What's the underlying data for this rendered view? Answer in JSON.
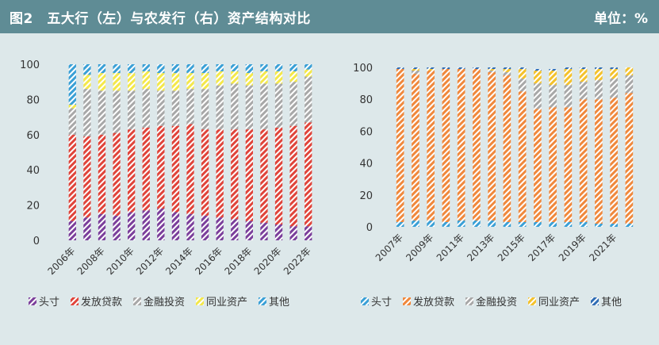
{
  "header": {
    "title": "图2　五大行（左）与农发行（右）资产结构对比",
    "unit": "单位：%"
  },
  "colors": {
    "头寸": "#7b3f9b",
    "发放贷款": "#e0443a",
    "金融投资": "#a8a8a8",
    "同业资产": "#f4e84a",
    "其他": "#3aa0d6",
    "right_头寸": "#3aa0d6",
    "right_发放贷款": "#f0883c",
    "right_金融投资": "#a8a8a8",
    "right_同业资产": "#f4c22c",
    "right_其他": "#2f6db5"
  },
  "chart_data": [
    {
      "type": "bar",
      "stacked": true,
      "title": "五大行",
      "categories": [
        "2006年",
        "2007年",
        "2008年",
        "2009年",
        "2010年",
        "2011年",
        "2012年",
        "2013年",
        "2014年",
        "2015年",
        "2016年",
        "2017年",
        "2018年",
        "2019年",
        "2020年",
        "2021年",
        "2022年"
      ],
      "x_tick_labels": [
        "2006年",
        "2008年",
        "2010年",
        "2012年",
        "2014年",
        "2016年",
        "2018年",
        "2020年",
        "2022年"
      ],
      "ylim": [
        0,
        100
      ],
      "yticks": [
        0,
        20,
        40,
        60,
        80,
        100
      ],
      "legend": "bottom",
      "legend_labels": [
        "头寸",
        "发放贷款",
        "金融投资",
        "同业资产",
        "其他"
      ],
      "series": [
        {
          "name": "头寸",
          "values": [
            11,
            13,
            15,
            14,
            16,
            17,
            18,
            16,
            15,
            14,
            13,
            12,
            11,
            10,
            9,
            8,
            8
          ]
        },
        {
          "name": "发放贷款",
          "values": [
            49,
            46,
            45,
            47,
            47,
            47,
            47,
            49,
            51,
            49,
            50,
            51,
            52,
            53,
            55,
            57,
            59
          ]
        },
        {
          "name": "金融投资",
          "values": [
            15,
            27,
            25,
            24,
            22,
            22,
            20,
            20,
            20,
            23,
            25,
            26,
            25,
            26,
            25,
            25,
            26
          ]
        },
        {
          "name": "同业资产",
          "values": [
            2,
            8,
            10,
            10,
            10,
            10,
            10,
            10,
            9,
            9,
            8,
            7,
            7,
            7,
            7,
            6,
            4
          ]
        },
        {
          "name": "其他",
          "values": [
            23,
            6,
            5,
            5,
            5,
            4,
            5,
            5,
            5,
            5,
            4,
            4,
            5,
            4,
            4,
            4,
            3
          ]
        }
      ]
    },
    {
      "type": "bar",
      "stacked": true,
      "title": "农发行",
      "categories": [
        "2007年",
        "2008年",
        "2009年",
        "2010年",
        "2011年",
        "2012年",
        "2013年",
        "2014年",
        "2015年",
        "2016年",
        "2017年",
        "2018年",
        "2019年",
        "2020年",
        "2021年",
        "2022年"
      ],
      "x_tick_labels": [
        "2007年",
        "2009年",
        "2011年",
        "2013年",
        "2015年",
        "2017年",
        "2019年",
        "2021年"
      ],
      "ylim": [
        0,
        100
      ],
      "yticks": [
        0,
        20,
        40,
        60,
        80,
        100
      ],
      "legend": "bottom",
      "legend_labels": [
        "头寸",
        "发放贷款",
        "金融投资",
        "同业资产",
        "其他"
      ],
      "series": [
        {
          "name": "头寸",
          "values": [
            3,
            4,
            4,
            3,
            4,
            4,
            4,
            3,
            3,
            3,
            3,
            3,
            3,
            2,
            2,
            2
          ]
        },
        {
          "name": "发放贷款",
          "values": [
            96,
            92,
            94,
            96,
            95,
            95,
            93,
            92,
            82,
            71,
            72,
            72,
            77,
            78,
            79,
            82
          ]
        },
        {
          "name": "金融投资",
          "values": [
            0,
            2,
            0,
            0,
            0,
            0,
            1,
            2,
            8,
            16,
            14,
            14,
            11,
            12,
            12,
            11
          ]
        },
        {
          "name": "同业资产",
          "values": [
            0,
            1,
            1,
            0,
            0,
            0,
            1,
            2,
            6,
            8,
            9,
            10,
            8,
            7,
            6,
            5
          ]
        },
        {
          "name": "其他",
          "values": [
            1,
            1,
            1,
            1,
            1,
            1,
            1,
            1,
            1,
            1,
            1,
            1,
            1,
            1,
            1,
            0
          ]
        }
      ]
    }
  ]
}
